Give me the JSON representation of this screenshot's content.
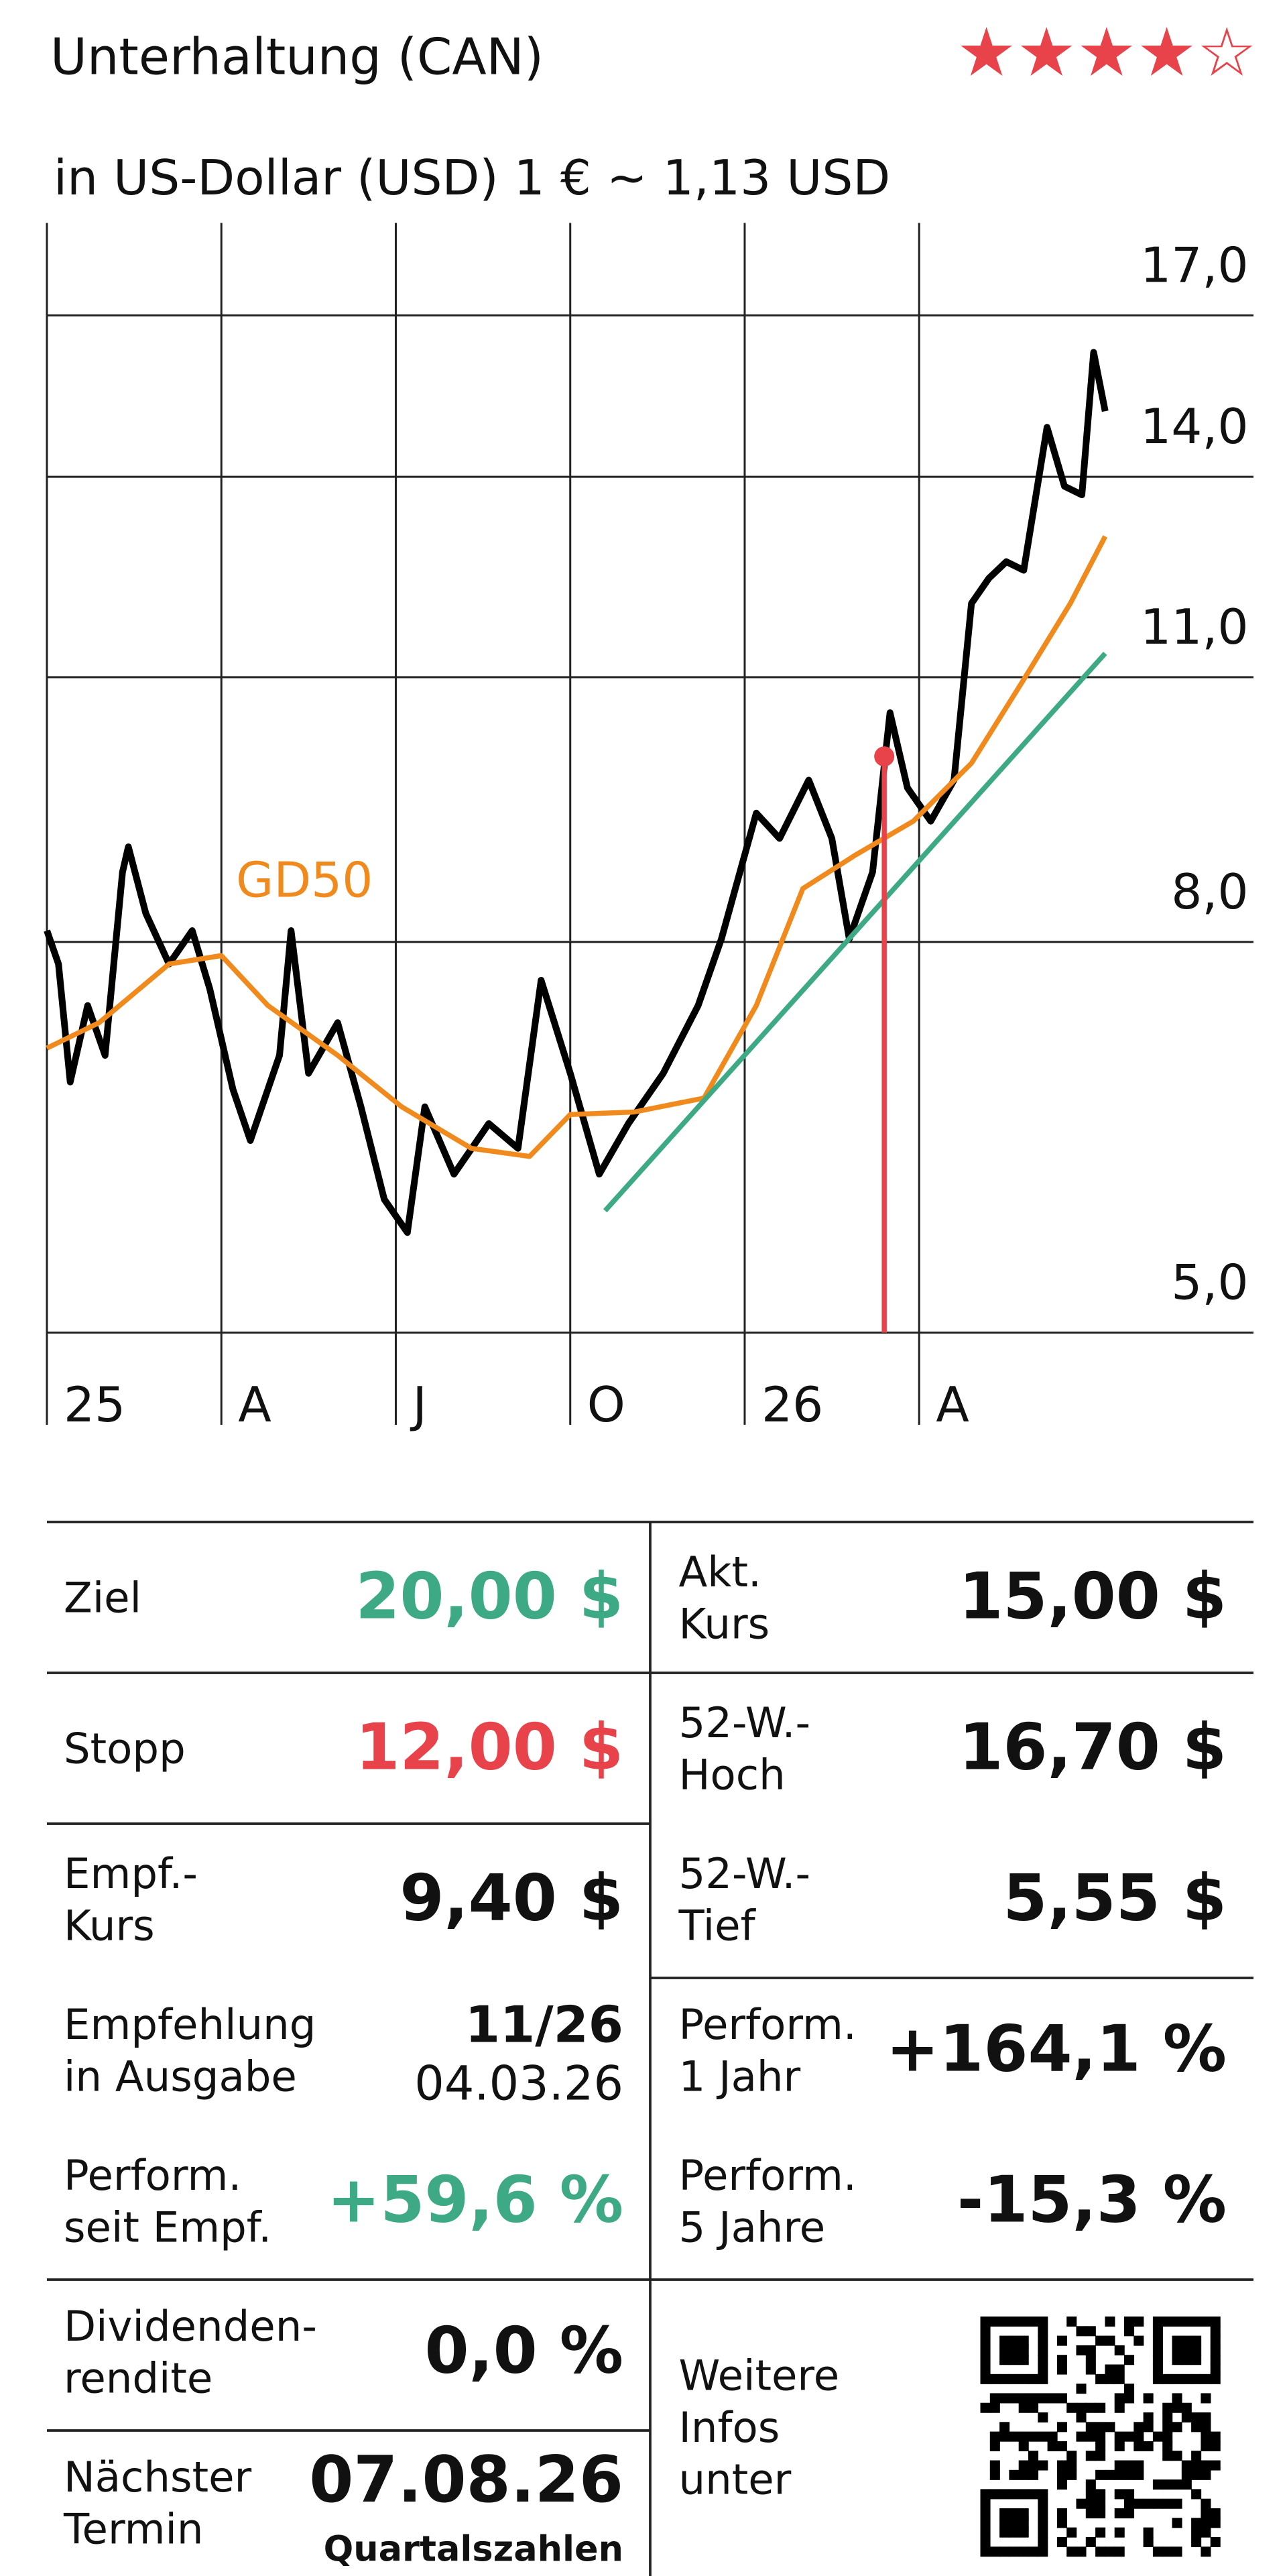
{
  "chart_data": {
    "type": "line",
    "title": "Unterhaltung (CAN)",
    "rating": "★★★★☆",
    "rating_color": "#e8434b",
    "subtitle": "in US-Dollar (USD) 1 € ~ 1,13 USD",
    "log_scale": true,
    "grid": true,
    "xlim": [
      0,
      20.75
    ],
    "xticks": [
      {
        "value": 0,
        "label": "25"
      },
      {
        "value": 3,
        "label": "A"
      },
      {
        "value": 6,
        "label": "J"
      },
      {
        "value": 9,
        "label": "O"
      },
      {
        "value": 12,
        "label": "26"
      },
      {
        "value": 15,
        "label": "A"
      }
    ],
    "ylim": [
      5,
      19
    ],
    "yticks": [
      {
        "value": 5,
        "label": "5,0"
      },
      {
        "value": 8,
        "label": "8,0"
      },
      {
        "value": 11,
        "label": "11,0"
      },
      {
        "value": 14,
        "label": "14,0"
      },
      {
        "value": 17,
        "label": "17,0"
      }
    ],
    "series": [
      {
        "color": "#000000",
        "width": 4,
        "x": [
          0,
          0.2,
          0.4,
          0.7,
          1.0,
          1.3,
          1.4,
          1.7,
          2.1,
          2.5,
          2.8,
          3.2,
          3.5,
          4.0,
          4.2,
          4.5,
          5.0,
          5.4,
          5.8,
          6.2,
          6.5,
          7.0,
          7.6,
          8.1,
          8.5,
          9.0,
          9.5,
          10.0,
          10.6,
          11.2,
          11.6,
          12.2,
          12.6,
          13.1,
          13.5,
          13.8,
          14.2,
          14.5,
          14.8,
          15.2,
          15.6,
          15.9,
          16.2,
          16.5,
          16.8,
          17.2,
          17.5,
          17.8,
          18.0,
          18.2
        ],
        "values": [
          8.11,
          7.79,
          6.76,
          7.41,
          6.98,
          8.7,
          8.97,
          8.28,
          7.79,
          8.11,
          7.56,
          6.7,
          6.3,
          6.98,
          8.11,
          6.83,
          7.26,
          6.56,
          5.87,
          5.64,
          6.56,
          6.05,
          6.43,
          6.24,
          7.64,
          6.83,
          6.05,
          6.43,
          6.83,
          7.41,
          8.03,
          9.34,
          9.06,
          9.72,
          9.06,
          8.03,
          8.7,
          10.54,
          9.63,
          9.25,
          9.72,
          12.02,
          12.39,
          12.64,
          12.51,
          14.86,
          13.84,
          13.7,
          16.26,
          15.15
        ]
      },
      {
        "name": "GD50",
        "color": "#f08a1c",
        "width": 3,
        "x": [
          0,
          0.9,
          2.1,
          3.0,
          3.8,
          5.0,
          6.1,
          7.3,
          8.3,
          9.0,
          10.1,
          11.3,
          12.2,
          13.0,
          13.9,
          14.9,
          15.9,
          16.8,
          17.6,
          18.2
        ],
        "values": [
          7.04,
          7.26,
          7.79,
          7.87,
          7.41,
          6.98,
          6.56,
          6.24,
          6.18,
          6.5,
          6.52,
          6.63,
          7.41,
          8.53,
          8.88,
          9.25,
          9.92,
          10.97,
          12.02,
          13.03
        ]
      },
      {
        "color": "#3daa85",
        "width": 3,
        "x": [
          9.6,
          18.2
        ],
        "values": [
          5.79,
          11.32
        ]
      }
    ],
    "marker": {
      "x": 14.4,
      "value": 10.0,
      "color": "#e8434b"
    }
  },
  "table": {
    "cells": [
      {
        "label": [
          "Ziel"
        ],
        "value": "20,00 $",
        "color": "#3daa85"
      },
      {
        "label": [
          "Stopp"
        ],
        "value": "12,00 $",
        "color": "#e8434b"
      },
      {
        "label": [
          "Empf.-",
          "Kurs"
        ],
        "value": "9,40 $"
      },
      {
        "label": [
          "Empfehlung",
          "in Ausgabe"
        ],
        "value": "11/26",
        "detail": "04.03.26"
      },
      {
        "label": [
          "Perform.",
          "seit Empf."
        ],
        "value": "+59,6 %",
        "color": "#3daa85"
      },
      {
        "label": [
          "Dividenden-",
          "rendite"
        ],
        "value": "0,0 %"
      },
      {
        "label": [
          "Nächster",
          "Termin"
        ],
        "value": "07.08.26",
        "detail": "Quartalszahlen"
      },
      {
        "label": [
          "Akt.",
          "Kurs"
        ],
        "value": "15,00 $"
      },
      {
        "label": [
          "52-W.-",
          "Hoch"
        ],
        "value": "16,70 $"
      },
      {
        "label": [
          "52-W.-",
          "Tief"
        ],
        "value": "5,55 $"
      },
      {
        "label": [
          "Perform.",
          "1 Jahr"
        ],
        "value": "+164,1 %"
      },
      {
        "label": [
          "Perform.",
          "5 Jahre"
        ],
        "value": "-15,3 %"
      },
      {
        "label": [
          "Weitere",
          "Infos",
          "unter"
        ]
      }
    ]
  }
}
